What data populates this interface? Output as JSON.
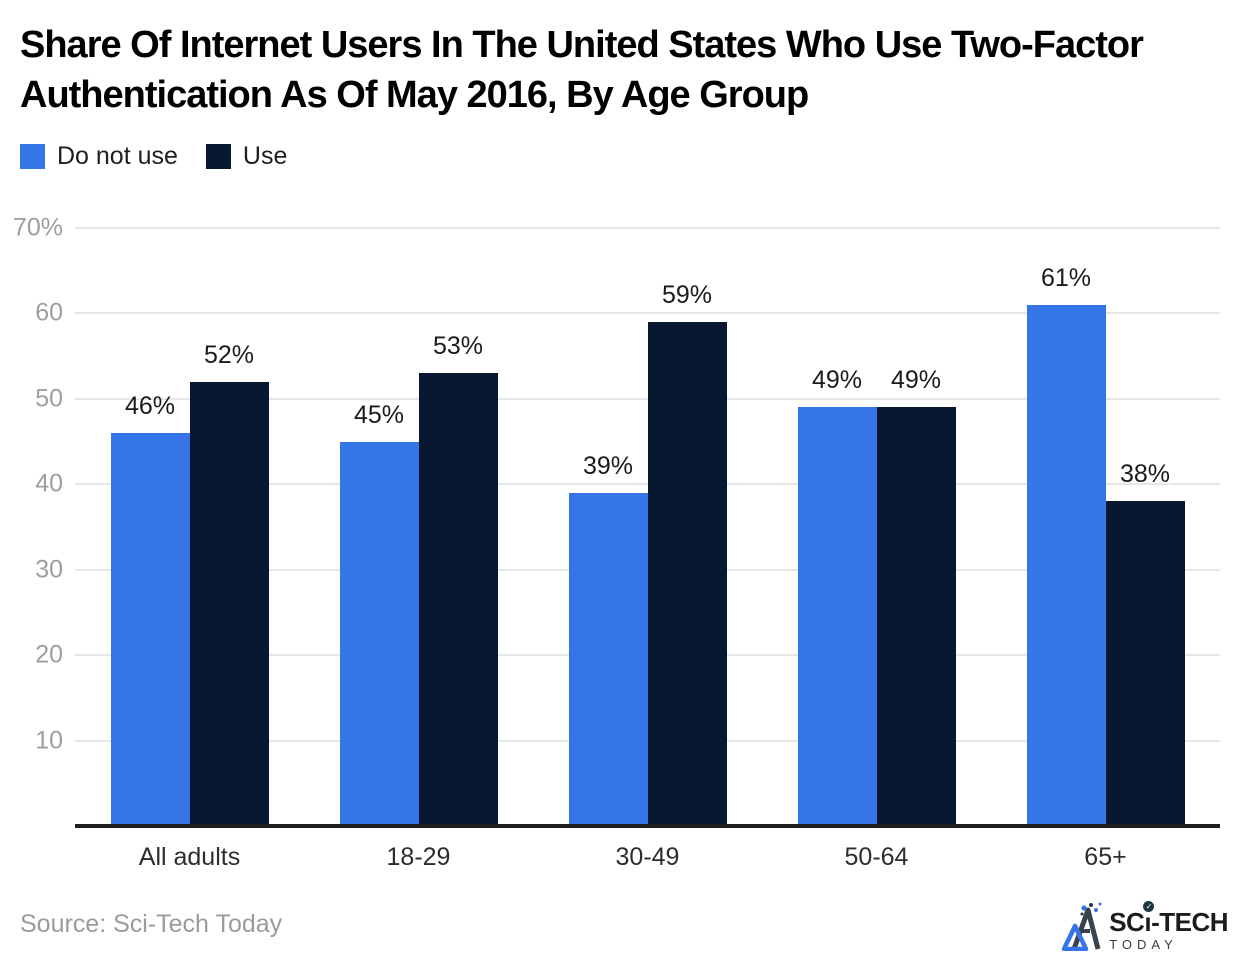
{
  "page_title": "Share Of Internet Users In The United States Who Use Two-Factor Authentication As Of May 2016, By Age Group",
  "chart_data": {
    "type": "bar",
    "title": "Share Of Internet Users In The United States Who Use Two-Factor Authentication As Of May 2016, By Age Group",
    "categories": [
      "All adults",
      "18-29",
      "30-49",
      "50-64",
      "65+"
    ],
    "series": [
      {
        "name": "Do not use",
        "color": "#3575e7",
        "values": [
          46,
          45,
          39,
          49,
          61
        ]
      },
      {
        "name": "Use",
        "color": "#081830",
        "values": [
          52,
          53,
          59,
          49,
          38
        ]
      }
    ],
    "xlabel": "",
    "ylabel": "",
    "ylim": [
      0,
      70
    ],
    "yticks": [
      10,
      20,
      30,
      40,
      50,
      60,
      70
    ],
    "ytick_labels": [
      "10",
      "20",
      "30",
      "40",
      "50",
      "60",
      "70%"
    ],
    "value_suffix": "%",
    "grid": true,
    "legend_position": "top-left"
  },
  "source": {
    "text": "Source: Sci-Tech Today"
  },
  "logo": {
    "part1": "SC",
    "part2": "ı",
    "part3": "-TECH",
    "check": "✓",
    "subtitle": "TODAY"
  },
  "colors": {
    "bar_blue": "#3575e7",
    "bar_navy": "#081830",
    "gridline": "#e7e7e7",
    "axis_label": "#9e9e9e",
    "baseline": "#1f1f1f"
  }
}
